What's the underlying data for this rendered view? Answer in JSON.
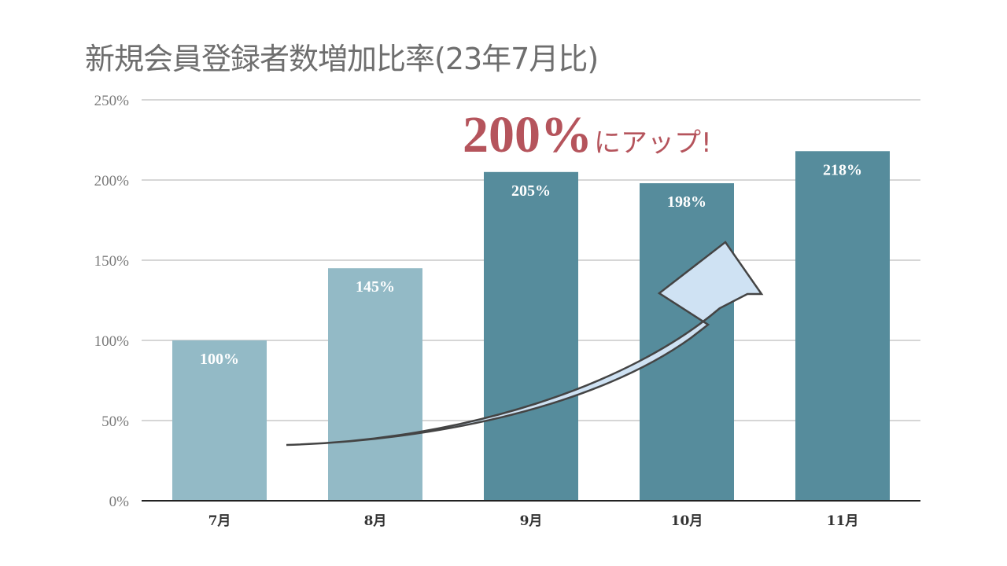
{
  "title": "新規会員登録者数増加比率(23年7月比)",
  "callout": {
    "big": "200%",
    "small": "にアップ!"
  },
  "colors": {
    "light": "#93bac6",
    "dark": "#568c9c",
    "callout": "#b5545c",
    "arrow_fill": "#cfe2f3"
  },
  "chart_data": {
    "type": "bar",
    "categories": [
      "7月",
      "8月",
      "9月",
      "10月",
      "11月"
    ],
    "values": [
      100,
      145,
      205,
      198,
      218
    ],
    "data_labels": [
      "100%",
      "145%",
      "205%",
      "198%",
      "218%"
    ],
    "bar_shades": [
      "light",
      "light",
      "dark",
      "dark",
      "dark"
    ],
    "ylim": [
      0,
      250
    ],
    "yticks": [
      0,
      50,
      100,
      150,
      200,
      250
    ],
    "ytick_labels": [
      "0%",
      "50%",
      "100%",
      "150%",
      "200%",
      "250%"
    ],
    "grid": true,
    "legend": "none"
  }
}
